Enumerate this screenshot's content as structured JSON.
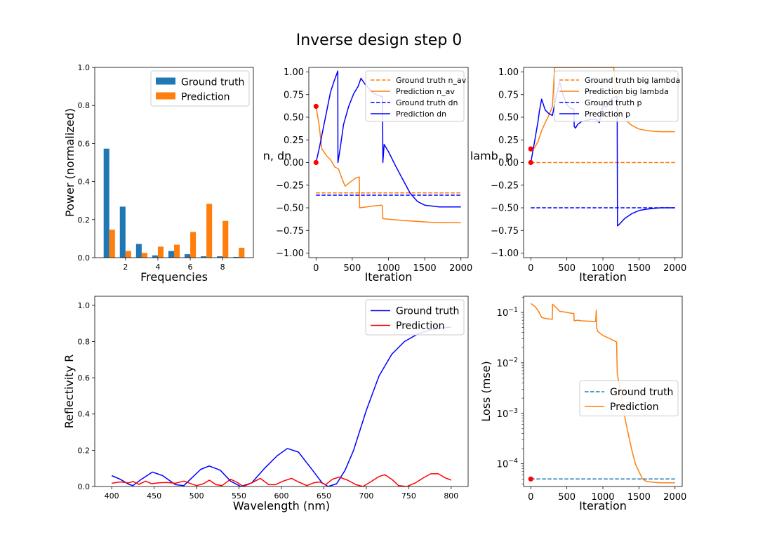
{
  "figure": {
    "title": "Inverse design step 0"
  },
  "colors": {
    "blue_bar": "#1f77b4",
    "orange": "#ff7f0e",
    "blue": "#0000ff",
    "red": "#ff0000"
  },
  "chart_data": [
    {
      "id": "freq",
      "type": "bar",
      "xlabel": "Frequencies",
      "ylabel": "Power (normalized)",
      "ylim": [
        0,
        1
      ],
      "xlim": [
        0.1,
        9.9
      ],
      "xticks": [
        2,
        4,
        6,
        8
      ],
      "yticks": [
        0,
        0.2,
        0.4,
        0.6,
        0.8,
        1.0
      ],
      "ytick_labels": [
        "0.0",
        "0.2",
        "0.4",
        "0.6",
        "0.8",
        "1.0"
      ],
      "legend": "upper right",
      "categories": [
        1,
        2,
        3,
        4,
        5,
        6,
        7,
        8,
        9
      ],
      "series": [
        {
          "name": "Ground truth",
          "color": "#1f77b4",
          "values": [
            0.573,
            0.268,
            0.072,
            0.012,
            0.035,
            0.018,
            0.007,
            0.007,
            0.004
          ]
        },
        {
          "name": "Prediction",
          "color": "#ff7f0e",
          "values": [
            0.147,
            0.035,
            0.025,
            0.058,
            0.068,
            0.135,
            0.283,
            0.193,
            0.052
          ]
        }
      ]
    },
    {
      "id": "ndn",
      "type": "line",
      "xlabel": "Iteration",
      "ylabel": "n, dn",
      "xlim": [
        -100,
        2100
      ],
      "ylim": [
        -1.05,
        1.05
      ],
      "xticks": [
        0,
        500,
        1000,
        1500,
        2000
      ],
      "yticks": [
        -1.0,
        -0.75,
        -0.5,
        -0.25,
        0.0,
        0.25,
        0.5,
        0.75,
        1.0
      ],
      "ytick_labels": [
        "−1.00",
        "−0.75",
        "−0.50",
        "−0.25",
        "0.00",
        "0.25",
        "0.50",
        "0.75",
        "1.00"
      ],
      "legend": "upper right",
      "series": [
        {
          "name": "Ground truth n_av",
          "color": "#ff7f0e",
          "dash": true,
          "x": [
            0,
            2000
          ],
          "y": [
            -0.335,
            -0.335
          ]
        },
        {
          "name": "Prediction n_av",
          "color": "#ff7f0e",
          "dash": false,
          "x": [
            0,
            40,
            80,
            150,
            200,
            260,
            310,
            350,
            400,
            450,
            500,
            550,
            598,
            602,
            700,
            800,
            900,
            918,
            922,
            1000,
            1200,
            1400,
            1600,
            1800,
            2000
          ],
          "y": [
            0.62,
            0.43,
            0.15,
            0.07,
            0.03,
            -0.05,
            -0.07,
            -0.16,
            -0.26,
            -0.23,
            -0.2,
            -0.17,
            -0.16,
            -0.5,
            -0.49,
            -0.48,
            -0.47,
            -0.48,
            -0.62,
            -0.625,
            -0.64,
            -0.65,
            -0.66,
            -0.665,
            -0.665
          ]
        },
        {
          "name": "Ground truth dn",
          "color": "#0000ff",
          "dash": true,
          "x": [
            0,
            2000
          ],
          "y": [
            -0.36,
            -0.36
          ]
        },
        {
          "name": "Prediction dn",
          "color": "#0000ff",
          "dash": false,
          "x": [
            0,
            50,
            100,
            150,
            200,
            250,
            300,
            302,
            330,
            380,
            450,
            520,
            580,
            620,
            680,
            750,
            800,
            900,
            918,
            922,
            940,
            1000,
            1100,
            1200,
            1300,
            1400,
            1500,
            1700,
            2000
          ],
          "y": [
            0.0,
            0.18,
            0.38,
            0.58,
            0.78,
            0.9,
            1.01,
            0.0,
            0.14,
            0.42,
            0.62,
            0.76,
            0.84,
            0.93,
            0.86,
            0.8,
            0.76,
            0.73,
            0.73,
            0.0,
            0.2,
            0.12,
            -0.04,
            -0.19,
            -0.34,
            -0.43,
            -0.47,
            -0.49,
            -0.49
          ]
        }
      ],
      "markers": [
        {
          "x": 0,
          "y": 0.62,
          "color": "#ff0000"
        },
        {
          "x": 0,
          "y": 0.0,
          "color": "#ff0000"
        }
      ]
    },
    {
      "id": "lamb",
      "type": "line",
      "xlabel": "Iteration",
      "ylabel": "lamb, p",
      "xlim": [
        -100,
        2100
      ],
      "ylim": [
        -1.05,
        1.05
      ],
      "xticks": [
        0,
        500,
        1000,
        1500,
        2000
      ],
      "yticks": [
        -1.0,
        -0.75,
        -0.5,
        -0.25,
        0.0,
        0.25,
        0.5,
        0.75,
        1.0
      ],
      "ytick_labels": [
        "−1.00",
        "−0.75",
        "−0.50",
        "−0.25",
        "0.00",
        "0.25",
        "0.50",
        "0.75",
        "1.00"
      ],
      "legend": "upper right",
      "series": [
        {
          "name": "Ground truth big lambda",
          "color": "#ff7f0e",
          "dash": true,
          "x": [
            0,
            2000
          ],
          "y": [
            0.0,
            0.0
          ]
        },
        {
          "name": "Prediction big lambda",
          "color": "#ff7f0e",
          "dash": false,
          "x": [
            0,
            50,
            100,
            150,
            200,
            250,
            300,
            330,
            1150,
            1200,
            1300,
            1400,
            1500,
            1600,
            1700,
            1800,
            2000
          ],
          "y": [
            0.15,
            0.16,
            0.23,
            0.35,
            0.44,
            0.52,
            0.62,
            1.05,
            1.05,
            0.6,
            0.48,
            0.41,
            0.37,
            0.355,
            0.345,
            0.34,
            0.34
          ]
        },
        {
          "name": "Ground truth p",
          "color": "#0000ff",
          "dash": true,
          "x": [
            0,
            2000
          ],
          "y": [
            -0.5,
            -0.5
          ]
        },
        {
          "name": "Prediction p",
          "color": "#0000ff",
          "dash": false,
          "x": [
            0,
            50,
            100,
            120,
            150,
            200,
            250,
            300,
            350,
            400,
            450,
            500,
            550,
            598,
            602,
            620,
            650,
            700,
            800,
            900,
            950,
            980,
            1000,
            1050,
            1100,
            1150,
            1198,
            1202,
            1230,
            1300,
            1400,
            1500,
            1600,
            1800,
            2000
          ],
          "y": [
            0.0,
            0.22,
            0.45,
            0.57,
            0.7,
            0.58,
            0.54,
            0.52,
            0.72,
            0.89,
            0.74,
            0.64,
            0.6,
            0.59,
            0.4,
            0.38,
            0.42,
            0.45,
            0.47,
            0.48,
            0.44,
            0.53,
            0.63,
            0.61,
            0.69,
            0.72,
            0.73,
            -0.7,
            -0.68,
            -0.62,
            -0.565,
            -0.53,
            -0.515,
            -0.5,
            -0.5
          ]
        }
      ],
      "markers": [
        {
          "x": 0,
          "y": 0.15,
          "color": "#ff0000"
        },
        {
          "x": 0,
          "y": 0.0,
          "color": "#ff0000"
        }
      ]
    },
    {
      "id": "refl",
      "type": "line",
      "xlabel": "Wavelength (nm)",
      "ylabel": "Reflectivity R",
      "xlim": [
        380,
        820
      ],
      "ylim": [
        0,
        1.05
      ],
      "xticks": [
        400,
        450,
        500,
        550,
        600,
        650,
        700,
        750,
        800
      ],
      "yticks": [
        0,
        0.2,
        0.4,
        0.6,
        0.8,
        1.0
      ],
      "ytick_labels": [
        "0.0",
        "0.2",
        "0.4",
        "0.6",
        "0.8",
        "1.0"
      ],
      "legend": "upper right",
      "series": [
        {
          "name": "Ground truth",
          "color": "#0000ff",
          "dash": false,
          "x": [
            400,
            410,
            420,
            425,
            435,
            448,
            460,
            475,
            485,
            495,
            505,
            515,
            528,
            540,
            552,
            565,
            580,
            595,
            607,
            620,
            635,
            648,
            655,
            665,
            675,
            685,
            700,
            715,
            730,
            745,
            760,
            775,
            790,
            800
          ],
          "y": [
            0.06,
            0.04,
            0.012,
            0.005,
            0.04,
            0.08,
            0.06,
            0.01,
            0.005,
            0.05,
            0.095,
            0.113,
            0.09,
            0.03,
            0.0,
            0.02,
            0.1,
            0.17,
            0.21,
            0.19,
            0.1,
            0.02,
            0.0,
            0.015,
            0.09,
            0.2,
            0.42,
            0.61,
            0.73,
            0.8,
            0.84,
            0.865,
            0.875,
            0.88
          ]
        },
        {
          "name": "Prediction",
          "color": "#ff0000",
          "dash": false,
          "x": [
            400,
            410,
            420,
            425,
            432,
            440,
            447,
            455,
            465,
            475,
            485,
            492,
            500,
            508,
            515,
            523,
            530,
            540,
            547,
            555,
            565,
            575,
            585,
            593,
            602,
            612,
            620,
            630,
            638,
            645,
            652,
            660,
            668,
            678,
            688,
            696,
            705,
            715,
            722,
            730,
            738,
            748,
            758,
            768,
            776,
            785,
            792,
            800
          ],
          "y": [
            0.018,
            0.025,
            0.02,
            0.028,
            0.012,
            0.03,
            0.015,
            0.02,
            0.022,
            0.018,
            0.03,
            0.018,
            0.005,
            0.015,
            0.035,
            0.01,
            0.005,
            0.04,
            0.025,
            0.0,
            0.02,
            0.045,
            0.01,
            0.01,
            0.03,
            0.045,
            0.025,
            0.005,
            0.02,
            0.025,
            0.01,
            0.04,
            0.052,
            0.035,
            0.01,
            0.0,
            0.025,
            0.055,
            0.065,
            0.04,
            0.005,
            0.0,
            0.02,
            0.05,
            0.07,
            0.07,
            0.05,
            0.035
          ]
        }
      ]
    },
    {
      "id": "loss",
      "type": "line",
      "scale_y": "log",
      "xlabel": "Iteration",
      "ylabel": "Loss (mse)",
      "xlim": [
        -100,
        2100
      ],
      "ylim_log10": [
        -4.45,
        -0.68
      ],
      "xticks": [
        0,
        500,
        1000,
        1500,
        2000
      ],
      "ytick_exponents": [
        -4,
        -3,
        -2,
        -1
      ],
      "legend": "center right",
      "series": [
        {
          "name": "Ground truth",
          "color": "#1f77b4",
          "dash": true,
          "x": [
            0,
            2000
          ],
          "y": [
            5e-05,
            5e-05
          ]
        },
        {
          "name": "Prediction",
          "color": "#ff7f0e",
          "dash": false,
          "x": [
            0,
            30,
            60,
            100,
            150,
            200,
            250,
            298,
            302,
            350,
            400,
            450,
            500,
            550,
            598,
            602,
            650,
            700,
            800,
            900,
            908,
            912,
            930,
            1000,
            1100,
            1190,
            1200,
            1250,
            1300,
            1350,
            1400,
            1450,
            1500,
            1550,
            1600,
            1700,
            1800,
            2000
          ],
          "y": [
            0.15,
            0.14,
            0.13,
            0.11,
            0.08,
            0.076,
            0.074,
            0.073,
            0.145,
            0.125,
            0.105,
            0.103,
            0.1,
            0.097,
            0.095,
            0.068,
            0.07,
            0.068,
            0.067,
            0.066,
            0.11,
            0.05,
            0.042,
            0.035,
            0.03,
            0.026,
            0.006,
            0.0025,
            0.0009,
            0.0004,
            0.00019,
            0.0001,
            7e-05,
            5e-05,
            4.5e-05,
            4.3e-05,
            4.2e-05,
            4.2e-05
          ]
        }
      ],
      "markers": [
        {
          "x": 0,
          "y": 5e-05,
          "color": "#ff0000"
        }
      ]
    }
  ]
}
